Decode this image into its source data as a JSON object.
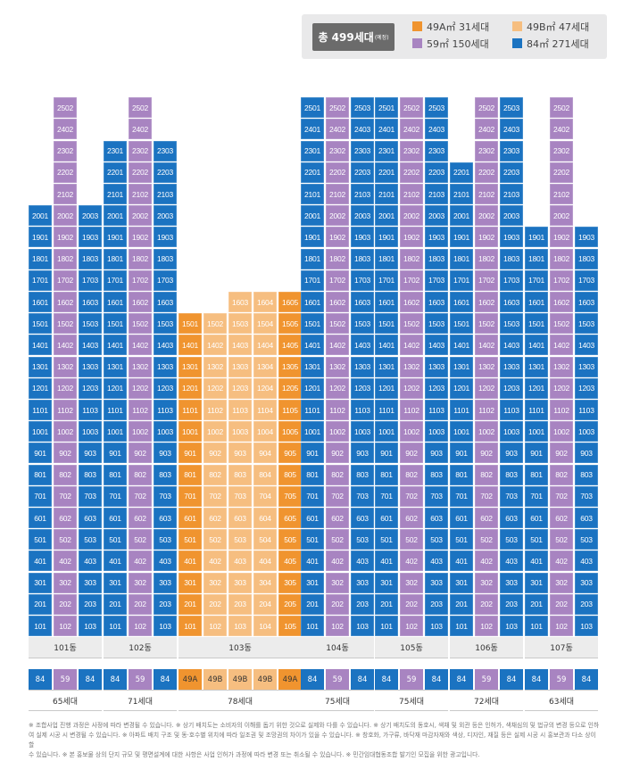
{
  "legend": {
    "total_label": "총 499세대",
    "total_note": "(예정)",
    "items": [
      {
        "type": "49A",
        "label": "49A㎡ 31세대",
        "color": "#f0942f"
      },
      {
        "type": "49B",
        "label": "49B㎡ 47세대",
        "color": "#f6be80"
      },
      {
        "type": "59",
        "label": "59㎡ 150세대",
        "color": "#a884c1"
      },
      {
        "type": "84",
        "label": "84㎡ 271세대",
        "color": "#1b73c1"
      }
    ]
  },
  "colors": {
    "49A": "#f0942f",
    "49B": "#f6be80",
    "59": "#a884c1",
    "84": "#1b73c1"
  },
  "buildings": [
    {
      "name": "101동",
      "units": [
        {
          "line": "01",
          "type": "84",
          "floors": [
            1,
            20
          ]
        },
        {
          "line": "02",
          "type": "59",
          "floors": [
            1,
            25
          ]
        },
        {
          "line": "03",
          "type": "84",
          "floors": [
            1,
            20
          ]
        }
      ],
      "types": [
        "84",
        "59",
        "84"
      ],
      "count": "65세대"
    },
    {
      "name": "102동",
      "units": [
        {
          "line": "01",
          "type": "84",
          "floors": [
            1,
            23
          ]
        },
        {
          "line": "02",
          "type": "59",
          "floors": [
            1,
            25
          ]
        },
        {
          "line": "03",
          "type": "84",
          "floors": [
            1,
            23
          ]
        }
      ],
      "types": [
        "84",
        "59",
        "84"
      ],
      "count": "71세대"
    },
    {
      "name": "103동",
      "units": [
        {
          "line": "01",
          "type": "49A",
          "floors": [
            1,
            15
          ]
        },
        {
          "line": "02",
          "type": "49B",
          "floors": [
            1,
            15
          ]
        },
        {
          "line": "03",
          "type": "49B",
          "floors": [
            1,
            16
          ]
        },
        {
          "line": "04",
          "type": "49B",
          "floors": [
            1,
            16
          ]
        },
        {
          "line": "05",
          "type": "49A",
          "floors": [
            1,
            16
          ]
        }
      ],
      "types": [
        "49A",
        "49B",
        "49B",
        "49B",
        "49A"
      ],
      "count": "78세대"
    },
    {
      "name": "104동",
      "units": [
        {
          "line": "01",
          "type": "84",
          "floors": [
            1,
            25
          ]
        },
        {
          "line": "02",
          "type": "59",
          "floors": [
            1,
            25
          ]
        },
        {
          "line": "03",
          "type": "84",
          "floors": [
            1,
            25
          ]
        }
      ],
      "types": [
        "84",
        "59",
        "84"
      ],
      "count": "75세대"
    },
    {
      "name": "105동",
      "units": [
        {
          "line": "01",
          "type": "84",
          "floors": [
            1,
            25
          ]
        },
        {
          "line": "02",
          "type": "59",
          "floors": [
            1,
            25
          ]
        },
        {
          "line": "03",
          "type": "84",
          "floors": [
            1,
            25
          ]
        }
      ],
      "types": [
        "84",
        "59",
        "84"
      ],
      "count": "75세대"
    },
    {
      "name": "106동",
      "units": [
        {
          "line": "01",
          "type": "84",
          "floors": [
            1,
            22
          ]
        },
        {
          "line": "02",
          "type": "59",
          "floors": [
            1,
            25
          ]
        },
        {
          "line": "03",
          "type": "84",
          "floors": [
            1,
            25
          ]
        }
      ],
      "types": [
        "84",
        "59",
        "84"
      ],
      "count": "72세대"
    },
    {
      "name": "107동",
      "units": [
        {
          "line": "01",
          "type": "84",
          "floors": [
            1,
            19
          ]
        },
        {
          "line": "02",
          "type": "59",
          "floors": [
            1,
            25
          ]
        },
        {
          "line": "03",
          "type": "84",
          "floors": [
            1,
            19
          ]
        }
      ],
      "types": [
        "84",
        "59",
        "84"
      ],
      "count": "63세대"
    }
  ],
  "footnote": [
    "※ 조합사업 진행 과정은 사정에 따라 변경될 수 있습니다. ※ 상기 배치도는 소비자의 이해를 돕기 위한 것으로 실제와 다를 수 있습니다. ※ 상기 배치도의 동호시, 색채 및 외관 등은 인허가, 색채심의 및 법규의 변경 등으로 인하",
    "여 실제 시공 시 변경될 수 있습니다. ※ 아파트 배치 구조 및 동·호수별 위치에 따라 일조권 및 조망권의 차이가 있을 수 있습니다. ※ 창호화, 가구류, 바닥재 마감자재와 색상, 디자인, 재질 등은 실제 시공 시 홍보관과 다소 상이할",
    "수 있습니다. ※ 본 홍보물 상의 단지 규모 및 평면설계에 대한 사항은 사업 인허가 과정에 따라 변경 또는 취소될 수 있습니다. ※ 민간임대협동조합 발기인 모집을 위한 광고입니다."
  ]
}
